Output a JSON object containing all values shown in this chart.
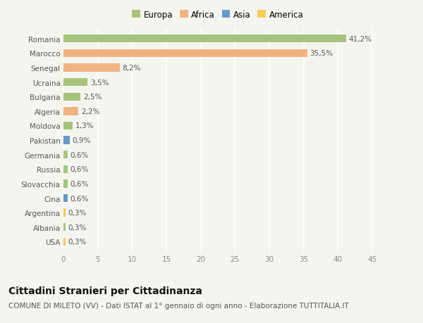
{
  "countries": [
    "Romania",
    "Marocco",
    "Senegal",
    "Ucraina",
    "Bulgaria",
    "Algeria",
    "Moldova",
    "Pakistan",
    "Germania",
    "Russia",
    "Slovacchia",
    "Cina",
    "Argentina",
    "Albania",
    "USA"
  ],
  "values": [
    41.2,
    35.5,
    8.2,
    3.5,
    2.5,
    2.2,
    1.3,
    0.9,
    0.6,
    0.6,
    0.6,
    0.6,
    0.3,
    0.3,
    0.3
  ],
  "labels": [
    "41,2%",
    "35,5%",
    "8,2%",
    "3,5%",
    "2,5%",
    "2,2%",
    "1,3%",
    "0,9%",
    "0,6%",
    "0,6%",
    "0,6%",
    "0,6%",
    "0,3%",
    "0,3%",
    "0,3%"
  ],
  "colors": [
    "#a8c47c",
    "#f0b482",
    "#f0b482",
    "#a8c47c",
    "#a8c47c",
    "#f0b482",
    "#a8c47c",
    "#6699cc",
    "#a8c47c",
    "#a8c47c",
    "#a8c47c",
    "#6699cc",
    "#f5cc55",
    "#a8c47c",
    "#f5cc55"
  ],
  "legend_labels": [
    "Europa",
    "Africa",
    "Asia",
    "America"
  ],
  "legend_colors": [
    "#a8c47c",
    "#f0b482",
    "#6699cc",
    "#f5cc55"
  ],
  "title": "Cittadini Stranieri per Cittadinanza",
  "subtitle": "COMUNE DI MILETO (VV) - Dati ISTAT al 1° gennaio di ogni anno - Elaborazione TUTTITALIA.IT",
  "xlim": [
    0,
    45
  ],
  "xticks": [
    0,
    5,
    10,
    15,
    20,
    25,
    30,
    35,
    40,
    45
  ],
  "background_color": "#f5f5f0",
  "grid_color": "#ffffff",
  "bar_height": 0.55,
  "label_fontsize": 7.5,
  "tick_fontsize": 7.5,
  "legend_fontsize": 8.5,
  "title_fontsize": 10,
  "subtitle_fontsize": 7.5
}
